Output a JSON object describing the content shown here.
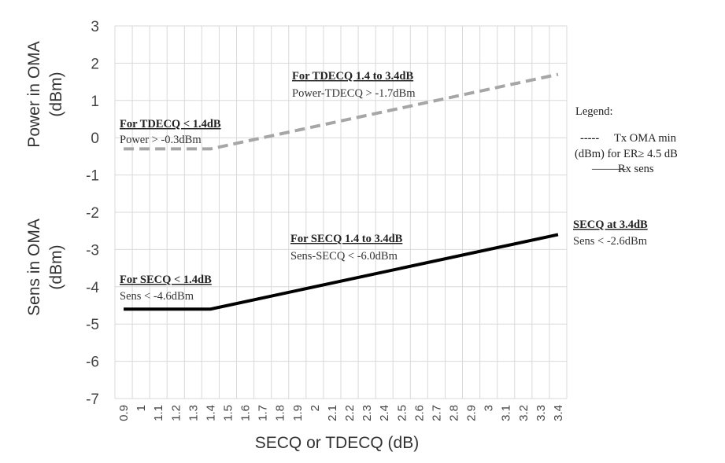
{
  "chart_data": {
    "type": "line",
    "xlabel": "SECQ or TDECQ (dB)",
    "ylabel_top": "Power  in OMA (dBm)",
    "ylabel_top_lines": [
      "Power  in OMA",
      "(dBm)"
    ],
    "ylabel_bottom": "Sens in OMA (dBm)",
    "ylabel_bottom_lines": [
      "Sens in OMA",
      "(dBm)"
    ],
    "xlim": [
      0.9,
      3.4
    ],
    "ylim": [
      -7,
      3
    ],
    "x_ticks": [
      "0.9",
      "1",
      "1.1",
      "1.2",
      "1.3",
      "1.4",
      "1.5",
      "1.6",
      "1.7",
      "1.8",
      "1.9",
      "2",
      "2.1",
      "2.2",
      "2.3",
      "2.4",
      "2.5",
      "2.6",
      "2.7",
      "2.8",
      "2.9",
      "3",
      "3.1",
      "3.2",
      "3.3",
      "3.4"
    ],
    "y_ticks": [
      "3",
      "2",
      "1",
      "0",
      "-1",
      "-2",
      "-3",
      "-4",
      "-5",
      "-6",
      "-7"
    ],
    "grid": true,
    "series": [
      {
        "name": "Tx OMA min (dBm) for ER ≥ 4.5 dB",
        "style": "dashed",
        "color": "#a6a6a6",
        "x": [
          0.9,
          1.4,
          3.4
        ],
        "y": [
          -0.3,
          -0.3,
          1.7
        ]
      },
      {
        "name": "Rx sens",
        "style": "solid",
        "color": "#000000",
        "x": [
          0.9,
          1.4,
          3.4
        ],
        "y": [
          -4.6,
          -4.6,
          -2.6
        ]
      }
    ],
    "annotations": [
      {
        "id": "tdecq-low",
        "lines": [
          "For TDECQ < 1.4dB",
          "Power > -0.3dBm"
        ]
      },
      {
        "id": "tdecq-mid",
        "lines": [
          "For TDECQ 1.4 to 3.4dB",
          "Power-TDECQ > -1.7dBm"
        ]
      },
      {
        "id": "secq-low",
        "lines": [
          "For SECQ < 1.4dB",
          "Sens < -4.6dBm"
        ]
      },
      {
        "id": "secq-mid",
        "lines": [
          "For SECQ 1.4 to 3.4dB",
          "Sens-SECQ < -6.0dBm"
        ]
      },
      {
        "id": "secq-high",
        "lines": [
          "SECQ at 3.4dB",
          "Sens < -2.6dBm"
        ]
      }
    ],
    "legend": {
      "title": "Legend:",
      "dash_prefix": "-----",
      "line1": "Tx OMA min",
      "line2": "(dBm)  for ER≥ 4.5 dB",
      "solid_prefix": "———",
      "line3": "Rx sens",
      "position": "right"
    }
  }
}
